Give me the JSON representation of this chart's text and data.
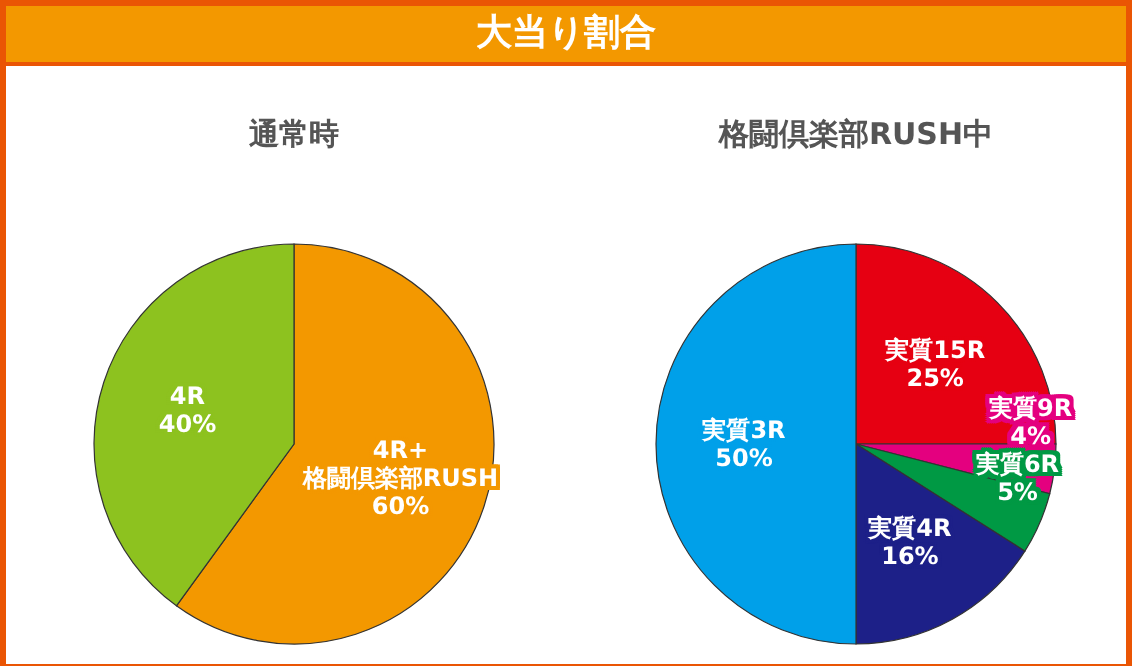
{
  "chart_data": [
    {
      "type": "other",
      "title": "大当り割合"
    },
    {
      "type": "pie",
      "title": "通常時",
      "categories": [
        "4R+ 格闘倶楽部RUSH",
        "4R"
      ],
      "values": [
        60,
        40
      ],
      "value_labels": [
        "60%",
        "40%"
      ],
      "colors": [
        "#f39800",
        "#8dc21f"
      ]
    },
    {
      "type": "pie",
      "title": "格闘倶楽部RUSH中",
      "categories": [
        "実質15R",
        "実質9R",
        "実質6R",
        "実質4R",
        "実質3R"
      ],
      "values": [
        25,
        4,
        5,
        16,
        50
      ],
      "value_labels": [
        "25%",
        "4%",
        "5%",
        "16%",
        "50%"
      ],
      "colors": [
        "#e60012",
        "#e4007f",
        "#009944",
        "#1d2088",
        "#00a0e9"
      ]
    }
  ]
}
